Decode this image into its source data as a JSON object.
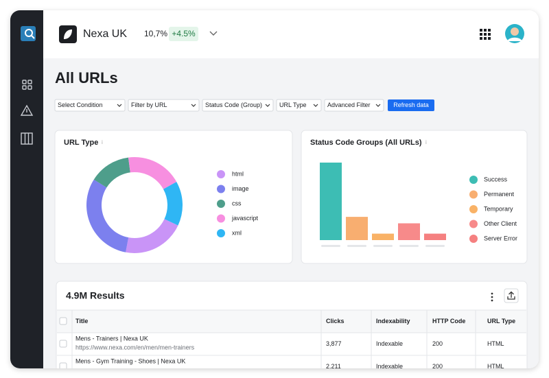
{
  "header": {
    "brand": "Nexa UK",
    "metric": "10,7%",
    "change": "+4.5%"
  },
  "page_title": "All URLs",
  "filters": [
    "Select Condition",
    "Filter by URL",
    "Status Code (Group)",
    "URL Type",
    "Advanced Filter"
  ],
  "refresh_button": "Refresh data",
  "chart_data": [
    {
      "type": "donut",
      "title": "URL Type",
      "categories": [
        "html",
        "image",
        "css",
        "javascript",
        "xml"
      ],
      "values": [
        21,
        31,
        14,
        19,
        15
      ],
      "colors": [
        "#c994f7",
        "#7c80ee",
        "#4e9e8b",
        "#f78fe0",
        "#2fb6f4"
      ]
    },
    {
      "type": "bar",
      "title": "Status Code Groups (All URLs)",
      "categories": [
        "Success",
        "Permanent",
        "Temporary",
        "Other Client",
        "Server Error"
      ],
      "values": [
        60,
        18,
        5,
        13,
        5
      ],
      "colors": [
        "#3dbdb4",
        "#f8ae70",
        "#f9b266",
        "#f78a8a",
        "#f58080"
      ]
    }
  ],
  "results": {
    "title": "4.9M Results",
    "columns": [
      "Title",
      "Clicks",
      "Indexability",
      "HTTP Code",
      "URL Type"
    ],
    "rows": [
      {
        "title": "Mens - Trainers | Nexa UK",
        "url": "https://www.nexa.com/en/men/men-trainers",
        "clicks": "3,877",
        "indexability": "Indexable",
        "http": "200",
        "type": "HTML"
      },
      {
        "title": "Mens -  Gym Training - Shoes | Nexa UK",
        "clicks": "2,211",
        "indexability": "Indexable",
        "http": "200",
        "type": "HTML"
      }
    ]
  }
}
